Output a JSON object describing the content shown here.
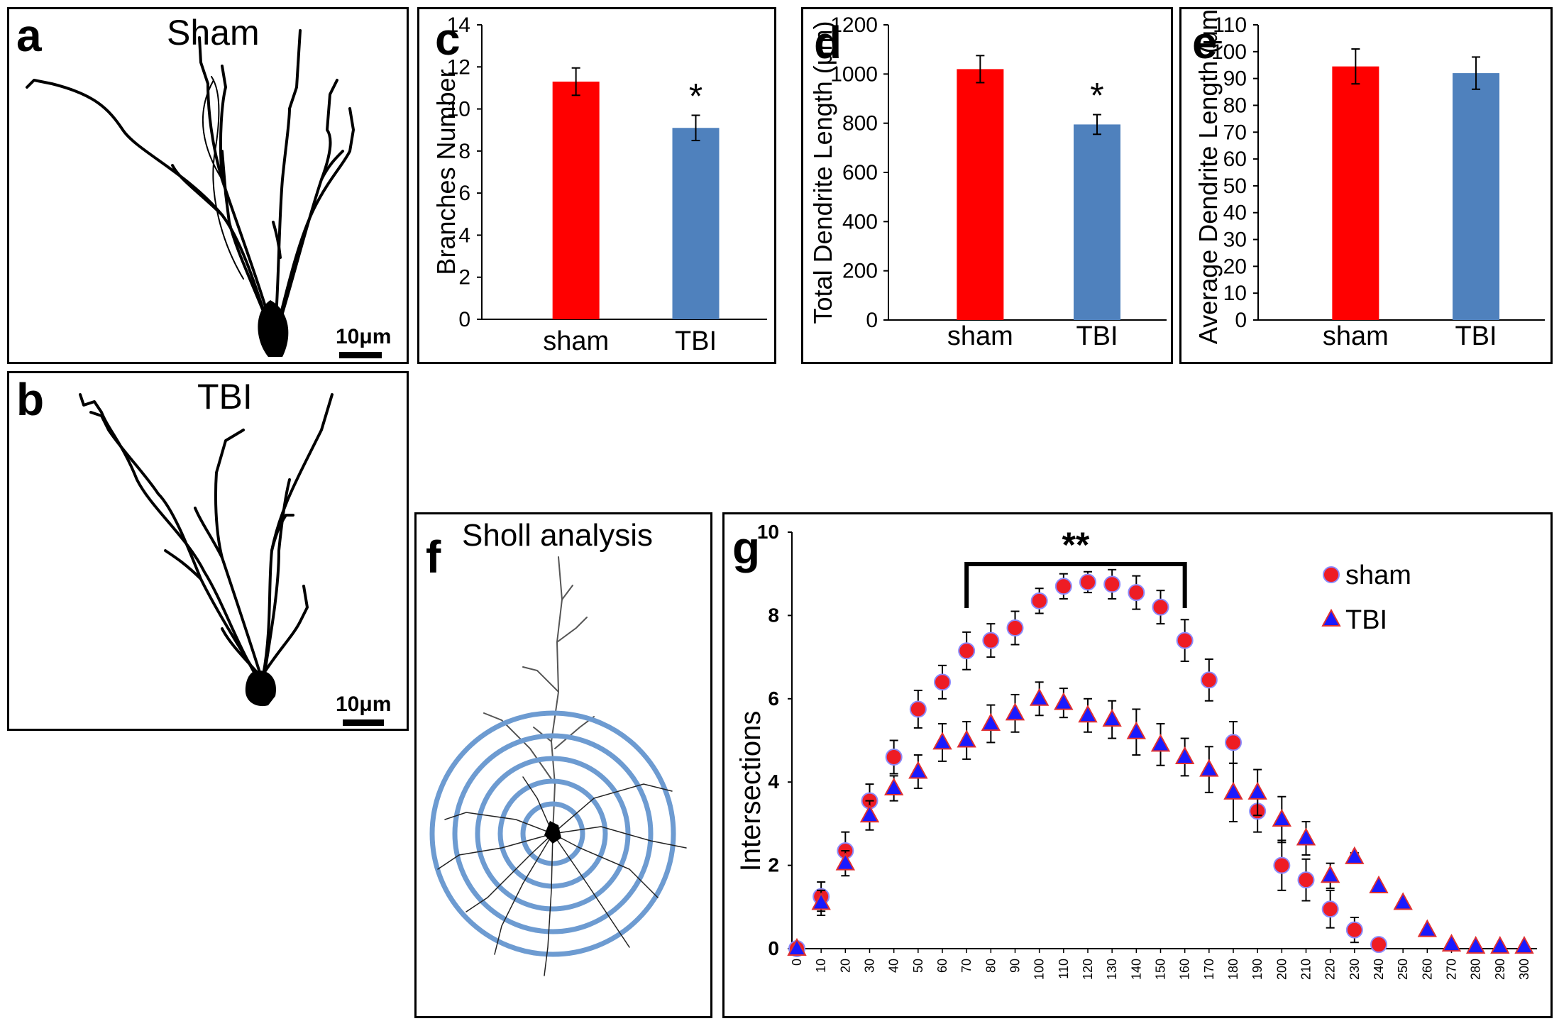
{
  "panels": {
    "a": {
      "label": "a",
      "title": "Sham",
      "scale": "10μm"
    },
    "b": {
      "label": "b",
      "title": "TBI",
      "scale": "10μm"
    },
    "c": {
      "label": "c"
    },
    "d": {
      "label": "d"
    },
    "e": {
      "label": "e"
    },
    "f": {
      "label": "f",
      "title": "Sholl analysis"
    },
    "g": {
      "label": "g",
      "significance": "**"
    }
  },
  "colors": {
    "sham": "#ff0000",
    "tbi": "#4f81bd",
    "sham_marker": "#ee1c24",
    "tbi_marker": "#1a1aff",
    "ring": "#6d9bd1"
  },
  "chart_data": [
    {
      "id": "c",
      "type": "bar",
      "categories": [
        "sham",
        "TBI"
      ],
      "values": [
        11.3,
        9.1
      ],
      "errors": [
        0.65,
        0.6
      ],
      "annotations": [
        "",
        "*"
      ],
      "ylabel": "Branches Number",
      "ylim": [
        0,
        14
      ],
      "yticks": [
        0,
        2,
        4,
        6,
        8,
        10,
        12,
        14
      ]
    },
    {
      "id": "d",
      "type": "bar",
      "categories": [
        "sham",
        "TBI"
      ],
      "values": [
        1020,
        795
      ],
      "errors": [
        55,
        40
      ],
      "annotations": [
        "",
        "*"
      ],
      "ylabel": "Total Dendrite Length (μm)",
      "ylim": [
        0,
        1200
      ],
      "yticks": [
        0,
        200,
        400,
        600,
        800,
        1000,
        1200
      ]
    },
    {
      "id": "e",
      "type": "bar",
      "categories": [
        "sham",
        "TBI"
      ],
      "values": [
        94.5,
        92
      ],
      "errors": [
        6.5,
        6
      ],
      "annotations": [
        "",
        ""
      ],
      "ylabel": "Average Dendrite Length (μm)",
      "ylim": [
        0,
        110
      ],
      "yticks": [
        0,
        10,
        20,
        30,
        40,
        50,
        60,
        70,
        80,
        90,
        100,
        110
      ]
    },
    {
      "id": "g",
      "type": "scatter",
      "ylabel": "Intersections",
      "ylim": [
        0,
        10
      ],
      "yticks": [
        0,
        2,
        4,
        6,
        8,
        10
      ],
      "x": [
        0,
        10,
        20,
        30,
        40,
        50,
        60,
        70,
        80,
        90,
        100,
        110,
        120,
        130,
        140,
        150,
        160,
        170,
        180,
        190,
        200,
        210,
        220,
        230,
        240,
        250,
        260,
        270,
        280,
        290,
        300
      ],
      "bracket": [
        70,
        160
      ],
      "legend": "top-right",
      "series": [
        {
          "name": "sham",
          "x": [
            0,
            10,
            20,
            30,
            40,
            50,
            60,
            70,
            80,
            90,
            100,
            110,
            120,
            130,
            140,
            150,
            160,
            170,
            180,
            190,
            200,
            210,
            220,
            230,
            240
          ],
          "y": [
            0,
            1.25,
            2.35,
            3.55,
            4.6,
            5.75,
            6.4,
            7.15,
            7.4,
            7.7,
            8.35,
            8.7,
            8.8,
            8.75,
            8.55,
            8.2,
            7.4,
            6.45,
            4.95,
            3.3,
            2.0,
            1.65,
            0.95,
            0.45,
            0.1
          ],
          "err": [
            0.05,
            0.35,
            0.45,
            0.4,
            0.4,
            0.45,
            0.4,
            0.45,
            0.4,
            0.4,
            0.3,
            0.3,
            0.25,
            0.35,
            0.4,
            0.4,
            0.5,
            0.5,
            0.5,
            0.5,
            0.6,
            0.5,
            0.45,
            0.3,
            0.1
          ]
        },
        {
          "name": "TBI",
          "x": [
            0,
            10,
            20,
            30,
            40,
            50,
            60,
            70,
            80,
            90,
            100,
            110,
            120,
            130,
            140,
            150,
            160,
            170,
            180,
            190,
            200,
            210,
            220,
            230,
            240,
            250,
            260,
            270,
            280,
            290,
            300
          ],
          "y": [
            0,
            1.1,
            2.05,
            3.2,
            3.85,
            4.25,
            4.95,
            5.0,
            5.4,
            5.65,
            6.0,
            5.9,
            5.6,
            5.5,
            5.2,
            4.9,
            4.6,
            4.3,
            3.75,
            3.75,
            3.1,
            2.65,
            1.75,
            2.2,
            1.5,
            1.1,
            0.45,
            0.1,
            0.05,
            0.05,
            0.05
          ],
          "err": [
            0.05,
            0.3,
            0.3,
            0.35,
            0.3,
            0.4,
            0.45,
            0.45,
            0.45,
            0.45,
            0.4,
            0.35,
            0.4,
            0.45,
            0.55,
            0.5,
            0.45,
            0.55,
            0.7,
            0.55,
            0.55,
            0.4,
            0.3,
            0.1,
            0.05,
            0.05,
            0.05,
            0.05,
            0.05,
            0.05,
            0.05
          ]
        }
      ]
    }
  ]
}
